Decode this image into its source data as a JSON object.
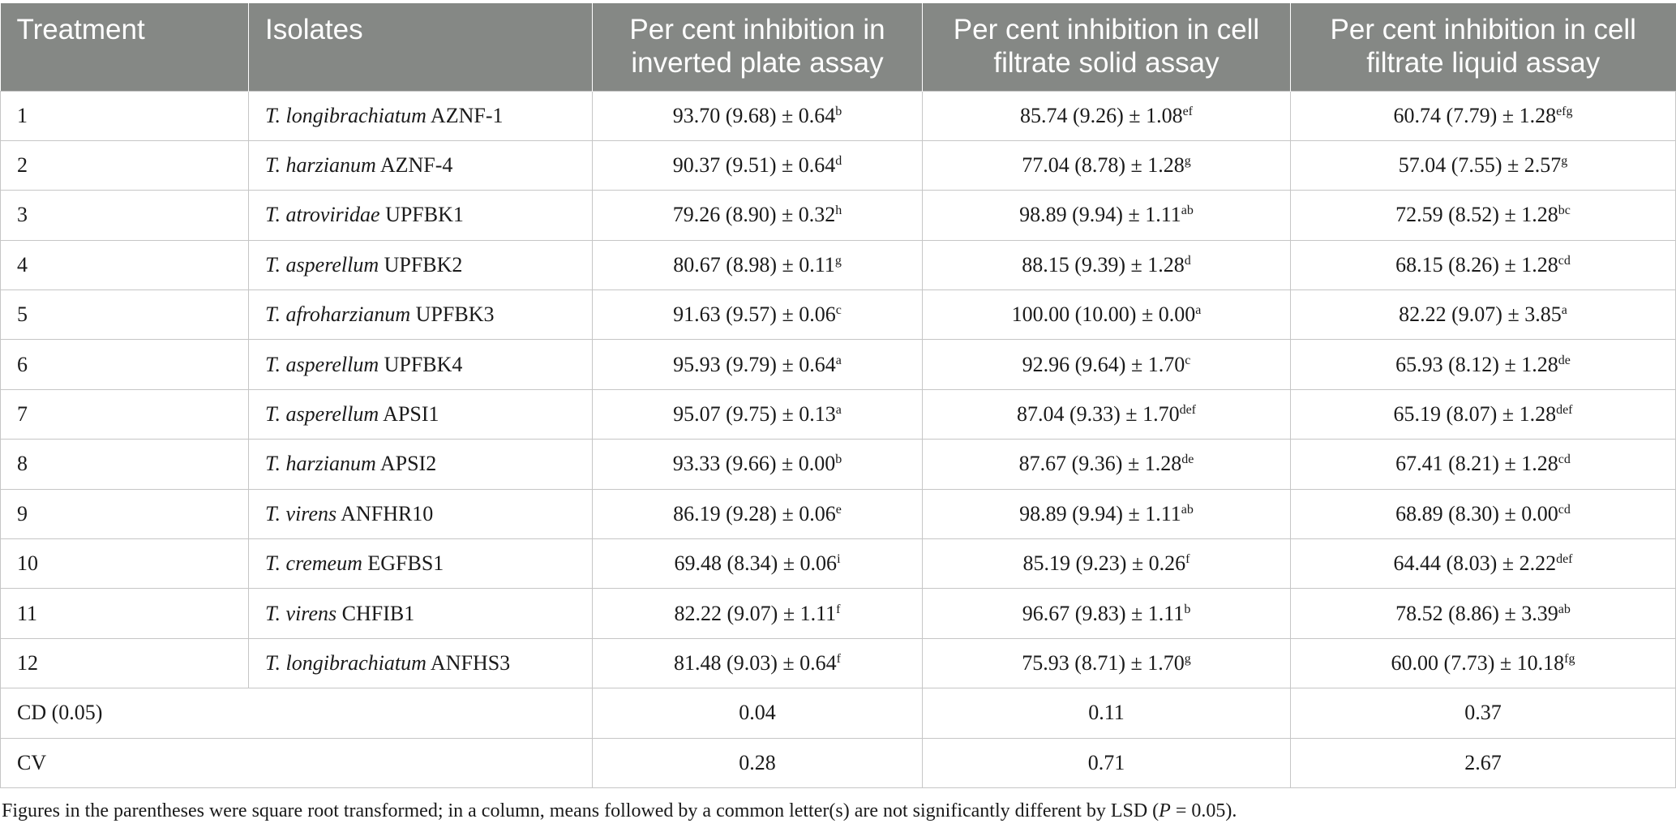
{
  "table": {
    "headers": {
      "treatment": "Treatment",
      "isolates": "Isolates",
      "inverted_plate": "Per cent inhibition in inverted plate assay",
      "cf_solid": "Per cent inhibition in cell filtrate solid assay",
      "cf_liquid": "Per cent inhibition in cell filtrate liquid assay"
    },
    "rows": [
      {
        "treatment": "1",
        "species": "T. longibrachiatum",
        "strain": " AZNF-1",
        "inv_val": "93.70 (9.68) ± 0.64",
        "inv_sup": "b",
        "sol_val": "85.74 (9.26) ± 1.08",
        "sol_sup": "ef",
        "liq_val": "60.74 (7.79) ± 1.28",
        "liq_sup": "efg"
      },
      {
        "treatment": "2",
        "species": "T. harzianum",
        "strain": " AZNF-4",
        "inv_val": "90.37 (9.51) ± 0.64",
        "inv_sup": "d",
        "sol_val": "77.04 (8.78) ± 1.28",
        "sol_sup": "g",
        "liq_val": "57.04 (7.55) ± 2.57",
        "liq_sup": "g"
      },
      {
        "treatment": "3",
        "species": "T. atroviridae",
        "strain": " UPFBK1",
        "inv_val": "79.26 (8.90) ± 0.32",
        "inv_sup": "h",
        "sol_val": "98.89 (9.94) ± 1.11",
        "sol_sup": "ab",
        "liq_val": "72.59 (8.52) ± 1.28",
        "liq_sup": "bc"
      },
      {
        "treatment": "4",
        "species": "T. asperellum",
        "strain": " UPFBK2",
        "inv_val": "80.67 (8.98) ± 0.11",
        "inv_sup": "g",
        "sol_val": "88.15 (9.39) ± 1.28",
        "sol_sup": "d",
        "liq_val": "68.15 (8.26) ± 1.28",
        "liq_sup": "cd"
      },
      {
        "treatment": "5",
        "species": "T. afroharzianum",
        "strain": " UPFBK3",
        "inv_val": "91.63 (9.57) ± 0.06",
        "inv_sup": "c",
        "sol_val": "100.00 (10.00) ± 0.00",
        "sol_sup": "a",
        "liq_val": "82.22 (9.07) ± 3.85",
        "liq_sup": "a"
      },
      {
        "treatment": "6",
        "species": "T. asperellum",
        "strain": " UPFBK4",
        "inv_val": "95.93 (9.79) ± 0.64",
        "inv_sup": "a",
        "sol_val": "92.96 (9.64) ± 1.70",
        "sol_sup": "c",
        "liq_val": "65.93 (8.12) ± 1.28",
        "liq_sup": "de"
      },
      {
        "treatment": "7",
        "species": "T. asperellum",
        "strain": " APSI1",
        "inv_val": "95.07 (9.75) ± 0.13",
        "inv_sup": "a",
        "sol_val": "87.04 (9.33) ± 1.70",
        "sol_sup": "def",
        "liq_val": "65.19 (8.07) ± 1.28",
        "liq_sup": "def"
      },
      {
        "treatment": "8",
        "species": "T. harzianum",
        "strain": " APSI2",
        "inv_val": "93.33 (9.66) ± 0.00",
        "inv_sup": "b",
        "sol_val": "87.67 (9.36) ± 1.28",
        "sol_sup": "de",
        "liq_val": "67.41 (8.21) ± 1.28",
        "liq_sup": "cd"
      },
      {
        "treatment": "9",
        "species": "T. virens",
        "strain": " ANFHR10",
        "inv_val": "86.19 (9.28) ± 0.06",
        "inv_sup": "e",
        "sol_val": "98.89 (9.94) ± 1.11",
        "sol_sup": "ab",
        "liq_val": "68.89 (8.30) ± 0.00",
        "liq_sup": "cd"
      },
      {
        "treatment": "10",
        "species": "T. cremeum",
        "strain": " EGFBS1",
        "inv_val": "69.48 (8.34) ± 0.06",
        "inv_sup": "i",
        "sol_val": "85.19 (9.23) ± 0.26",
        "sol_sup": "f",
        "liq_val": "64.44 (8.03) ± 2.22",
        "liq_sup": "def"
      },
      {
        "treatment": "11",
        "species": "T. virens",
        "strain": " CHFIB1",
        "inv_val": "82.22 (9.07) ± 1.11",
        "inv_sup": "f",
        "sol_val": "96.67 (9.83) ± 1.11",
        "sol_sup": "b",
        "liq_val": "78.52 (8.86) ± 3.39",
        "liq_sup": "ab"
      },
      {
        "treatment": "12",
        "species": "T. longibrachiatum",
        "strain": " ANFHS3",
        "inv_val": "81.48 (9.03) ± 0.64",
        "inv_sup": "f",
        "sol_val": "75.93 (8.71) ± 1.70",
        "sol_sup": "g",
        "liq_val": "60.00 (7.73) ± 10.18",
        "liq_sup": "fg"
      }
    ],
    "stats": [
      {
        "label": "CD (0.05)",
        "inv": "0.04",
        "sol": "0.11",
        "liq": "0.37"
      },
      {
        "label": "CV",
        "inv": "0.28",
        "sol": "0.71",
        "liq": "2.67"
      }
    ]
  },
  "footnote": {
    "before_p": "Figures in the parentheses were square root transformed; in a column, means followed by a common letter(s) are not significantly different by LSD (",
    "p_symbol": "P",
    "after_p": " = 0.05)."
  }
}
